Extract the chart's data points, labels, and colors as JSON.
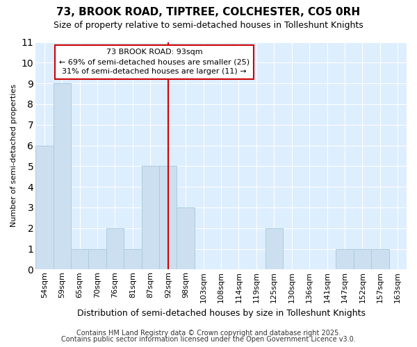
{
  "title1": "73, BROOK ROAD, TIPTREE, COLCHESTER, CO5 0RH",
  "title2": "Size of property relative to semi-detached houses in Tolleshunt Knights",
  "xlabel": "Distribution of semi-detached houses by size in Tolleshunt Knights",
  "ylabel": "Number of semi-detached properties",
  "footnote1": "Contains HM Land Registry data © Crown copyright and database right 2025.",
  "footnote2": "Contains public sector information licensed under the Open Government Licence v3.0.",
  "categories": [
    "54sqm",
    "59sqm",
    "65sqm",
    "70sqm",
    "76sqm",
    "81sqm",
    "87sqm",
    "92sqm",
    "98sqm",
    "103sqm",
    "108sqm",
    "114sqm",
    "119sqm",
    "125sqm",
    "130sqm",
    "136sqm",
    "141sqm",
    "147sqm",
    "152sqm",
    "157sqm",
    "163sqm"
  ],
  "values": [
    6,
    9,
    1,
    1,
    2,
    1,
    5,
    5,
    3,
    0,
    0,
    0,
    0,
    2,
    0,
    0,
    0,
    1,
    1,
    1,
    0
  ],
  "bar_color": "#ccdff0",
  "bar_edgecolor": "#aaccdd",
  "highlight_index": 7,
  "highlight_line_color": "#cc0000",
  "annotation_text": "73 BROOK ROAD: 93sqm\n← 69% of semi-detached houses are smaller (25)\n31% of semi-detached houses are larger (11) →",
  "annotation_box_edgecolor": "#cc0000",
  "annotation_box_facecolor": "#ffffff",
  "ylim": [
    0,
    11
  ],
  "yticks": [
    0,
    1,
    2,
    3,
    4,
    5,
    6,
    7,
    8,
    9,
    10,
    11
  ],
  "fig_bg_color": "#ffffff",
  "plot_bg_color": "#ddeeff",
  "grid_color": "#ffffff",
  "title1_fontsize": 11,
  "title2_fontsize": 9,
  "xlabel_fontsize": 9,
  "ylabel_fontsize": 8,
  "tick_fontsize": 8,
  "annot_fontsize": 8,
  "footnote_fontsize": 7
}
